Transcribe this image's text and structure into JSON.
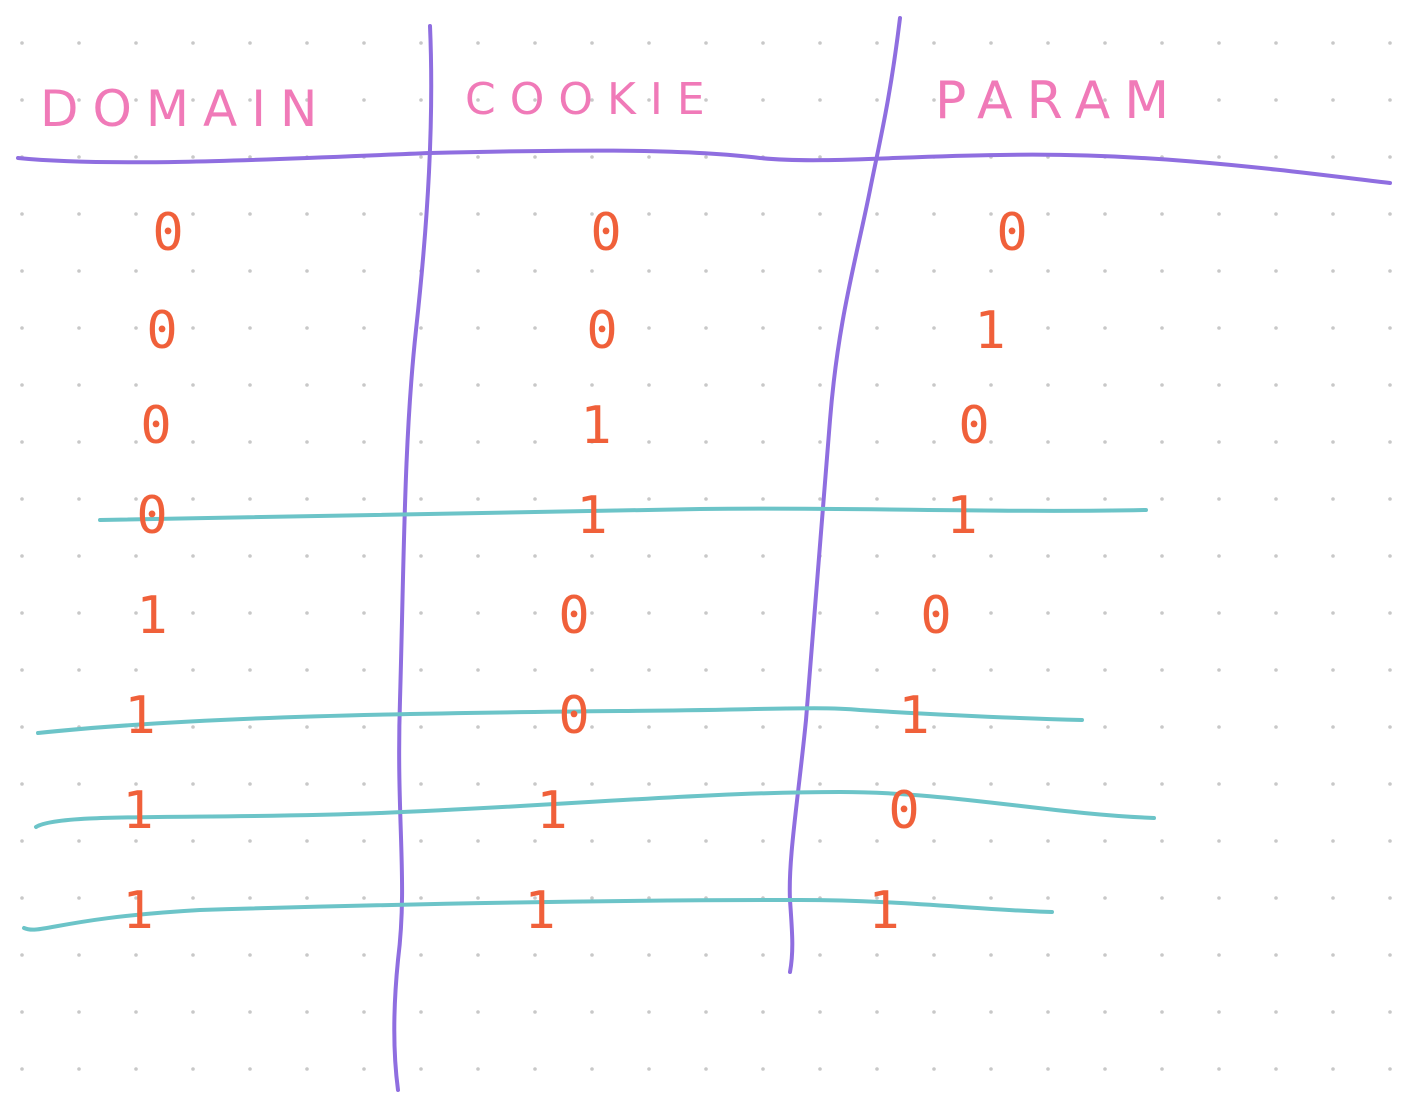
{
  "table": {
    "columns": [
      "DOMAIN",
      "COOKIE",
      "PARAM"
    ],
    "rows": [
      [
        "0",
        "0",
        "0"
      ],
      [
        "0",
        "0",
        "1"
      ],
      [
        "0",
        "1",
        "0"
      ],
      [
        "0",
        "1",
        "1"
      ],
      [
        "1",
        "0",
        "0"
      ],
      [
        "1",
        "0",
        "1"
      ],
      [
        "1",
        "1",
        "0"
      ],
      [
        "1",
        "1",
        "1"
      ]
    ],
    "highlighted_rows": [
      3,
      5,
      6,
      7
    ]
  },
  "colors": {
    "header_text": "#f07ab8",
    "grid_lines": "#8f6ee0",
    "cell_values": "#f0603a",
    "highlight_lines": "#6cc4c8",
    "dots": "#c8c8c8",
    "background": "#ffffff"
  }
}
